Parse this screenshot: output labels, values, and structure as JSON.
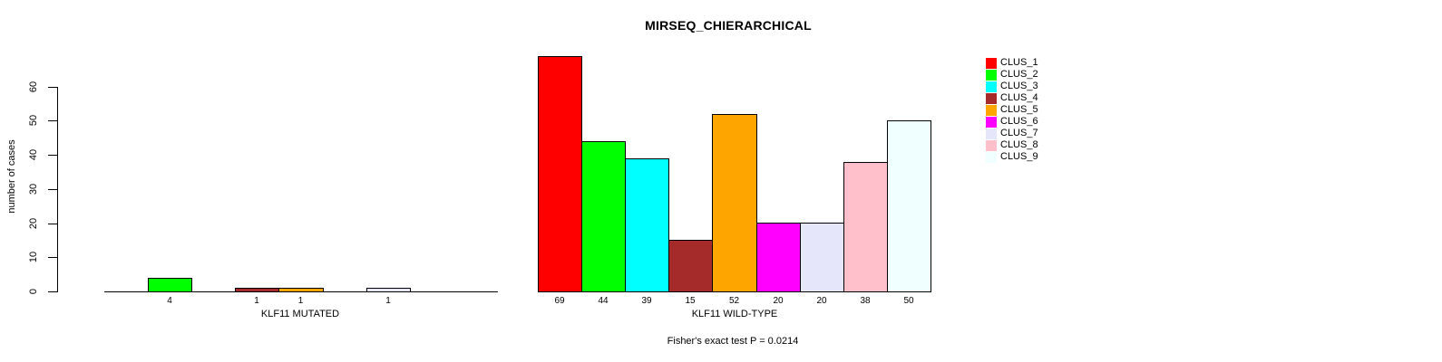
{
  "chart_data": {
    "type": "bar",
    "title": "MIRSEQ_CHIERARCHICAL",
    "ylabel": "number of cases",
    "ylim": [
      0,
      60
    ],
    "yticks": [
      0,
      10,
      20,
      30,
      40,
      50,
      60
    ],
    "grid": false,
    "legend_position": "right",
    "categories": [
      "CLUS_1",
      "CLUS_2",
      "CLUS_3",
      "CLUS_4",
      "CLUS_5",
      "CLUS_6",
      "CLUS_7",
      "CLUS_8",
      "CLUS_9"
    ],
    "colors": [
      "#FF0000",
      "#00FF00",
      "#00FFFF",
      "#A52A2A",
      "#FFA500",
      "#FF00FF",
      "#E6E6FA",
      "#FFC0CB",
      "#F0FFFF"
    ],
    "groups": [
      {
        "label": "KLF11 MUTATED",
        "values": [
          0,
          4,
          0,
          1,
          1,
          0,
          1,
          0,
          0
        ]
      },
      {
        "label": "KLF11 WILD-TYPE",
        "values": [
          69,
          44,
          39,
          15,
          52,
          20,
          20,
          38,
          50
        ]
      }
    ],
    "annotation": "Fisher's exact test P = 0.0214",
    "text_color": "#000000",
    "background_color": "#FFFFFF"
  }
}
